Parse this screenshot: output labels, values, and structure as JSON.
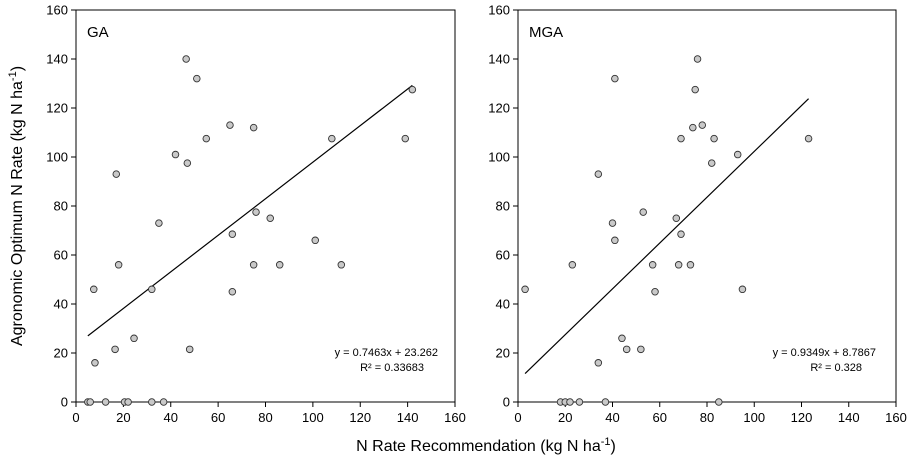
{
  "ylabel": "Agronomic Optimum N Rate (kg N ha",
  "xlabel": "N Rate Recommendation (kg N ha",
  "unit_superscript": "-1",
  "unit_close": ")",
  "colors": {
    "marker_fill": "#c9c9c9",
    "marker_edge": "#333333",
    "line": "#000000",
    "axis": "#000000"
  },
  "chart_data": [
    {
      "type": "scatter",
      "title": "GA",
      "xlim": [
        0,
        160
      ],
      "ylim": [
        0,
        160
      ],
      "xticks": [
        0,
        20,
        40,
        60,
        80,
        100,
        120,
        140,
        160
      ],
      "yticks": [
        0,
        20,
        40,
        60,
        80,
        100,
        120,
        140,
        160
      ],
      "grid": false,
      "x": [
        46.5,
        51,
        142,
        47,
        108,
        139,
        55,
        65,
        75,
        42,
        17,
        35,
        76,
        82,
        66,
        101,
        112,
        86,
        75,
        7.5,
        18,
        32,
        66,
        24.5,
        16.5,
        48,
        8,
        5,
        6,
        12.5,
        20.5,
        22,
        32,
        37
      ],
      "y": [
        140,
        132,
        127.5,
        97.5,
        107.5,
        107.5,
        107.5,
        113,
        112,
        101,
        93,
        73,
        77.5,
        75,
        68.5,
        66,
        56,
        56,
        56,
        46,
        56,
        46,
        45,
        26,
        21.5,
        21.5,
        16,
        0,
        0,
        0,
        0,
        0,
        0,
        0
      ],
      "trendline": {
        "slope": 0.7463,
        "intercept": 23.262,
        "x_range": [
          5,
          142
        ]
      },
      "annotations": [
        "y = 0.7463x + 23.262",
        "R² = 0.33683"
      ]
    },
    {
      "type": "scatter",
      "title": "MGA",
      "xlim": [
        0,
        160
      ],
      "ylim": [
        0,
        160
      ],
      "xticks": [
        0,
        20,
        40,
        60,
        80,
        100,
        120,
        140,
        160
      ],
      "yticks": [
        0,
        20,
        40,
        60,
        80,
        100,
        120,
        140,
        160
      ],
      "grid": false,
      "x": [
        76,
        41,
        75,
        78,
        74,
        83,
        69,
        123,
        82,
        93,
        34,
        40,
        53,
        41,
        67,
        69,
        23,
        57,
        68,
        73,
        3,
        58,
        95,
        44,
        46,
        52,
        34,
        18,
        20,
        22,
        26,
        37,
        85
      ],
      "y": [
        140,
        132,
        127.5,
        113,
        112,
        107.5,
        107.5,
        107.5,
        97.5,
        101,
        93,
        73,
        77.5,
        66,
        75,
        68.5,
        56,
        56,
        56,
        56,
        46,
        45,
        46,
        26,
        21.5,
        21.5,
        16,
        0,
        0,
        0,
        0,
        0,
        0
      ],
      "trendline": {
        "slope": 0.9349,
        "intercept": 8.7867,
        "x_range": [
          3,
          123
        ]
      },
      "annotations": [
        "y = 0.9349x + 8.7867",
        "R² = 0.328"
      ]
    }
  ]
}
